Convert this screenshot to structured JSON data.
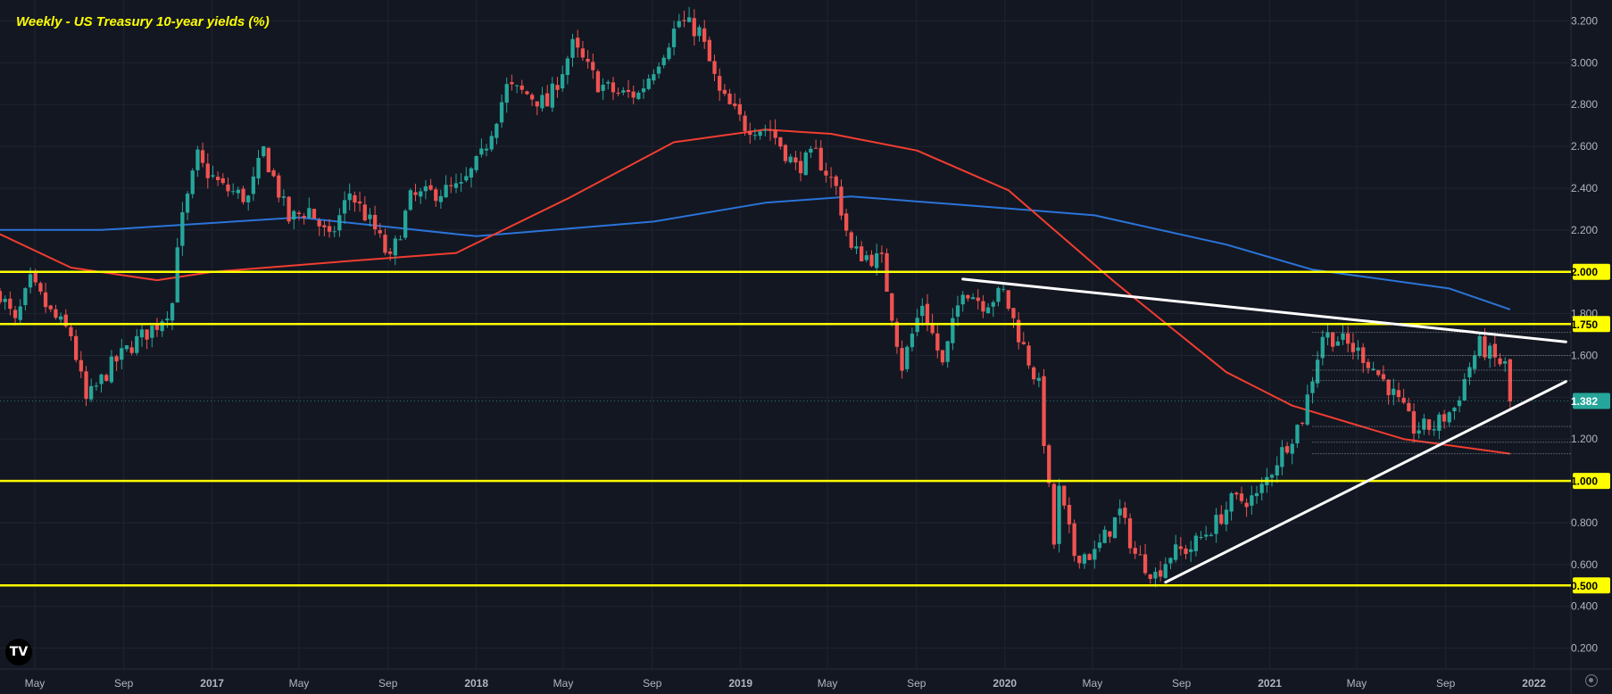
{
  "title": "Weekly - US Treasury 10-year yields (%)",
  "logo_text": "TV",
  "icons": [
    "tradingview-logo-icon",
    "settings-gear-icon"
  ],
  "colors": {
    "background": "#131722",
    "grid": "#1f2430",
    "bull": "#26a69a",
    "bear": "#ef5350",
    "sma_red": "#f23d30",
    "sma_blue": "#2a74d8",
    "levels": "#ffff00",
    "trendlines": "#ffffff",
    "axis_text": "#b2b5be",
    "current_price_badge": "#26a69a"
  },
  "chart_data": {
    "type": "candlestick",
    "title": "Weekly - US Treasury 10-year yields (%)",
    "timeframe": "Weekly",
    "x_range": [
      "2016-03-14",
      "2022-02-21"
    ],
    "ylim": [
      0.1,
      3.3
    ],
    "y_ticks": [
      3.2,
      3.0,
      2.8,
      2.6,
      2.4,
      2.2,
      2.0,
      1.8,
      1.6,
      1.4,
      1.2,
      1.0,
      0.8,
      0.6,
      0.4,
      0.2
    ],
    "x_ticks": [
      {
        "label": "May",
        "date": "2016-05-01"
      },
      {
        "label": "Sep",
        "date": "2016-09-01"
      },
      {
        "label": "2017",
        "date": "2017-01-01"
      },
      {
        "label": "May",
        "date": "2017-05-01"
      },
      {
        "label": "Sep",
        "date": "2017-09-01"
      },
      {
        "label": "2018",
        "date": "2018-01-01"
      },
      {
        "label": "May",
        "date": "2018-05-01"
      },
      {
        "label": "Sep",
        "date": "2018-09-01"
      },
      {
        "label": "2019",
        "date": "2019-01-01"
      },
      {
        "label": "May",
        "date": "2019-05-01"
      },
      {
        "label": "Sep",
        "date": "2019-09-01"
      },
      {
        "label": "2020",
        "date": "2020-01-01"
      },
      {
        "label": "May",
        "date": "2020-05-01"
      },
      {
        "label": "Sep",
        "date": "2020-09-01"
      },
      {
        "label": "2021",
        "date": "2021-01-01"
      },
      {
        "label": "May",
        "date": "2021-05-01"
      },
      {
        "label": "Sep",
        "date": "2021-09-01"
      },
      {
        "label": "2022",
        "date": "2022-01-01"
      }
    ],
    "price_path": [
      [
        "2016-03-14",
        1.9
      ],
      [
        "2016-04-04",
        1.75
      ],
      [
        "2016-04-25",
        1.95
      ],
      [
        "2016-05-23",
        1.8
      ],
      [
        "2016-06-20",
        1.7
      ],
      [
        "2016-07-11",
        1.38
      ],
      [
        "2016-08-15",
        1.55
      ],
      [
        "2016-09-12",
        1.65
      ],
      [
        "2016-10-17",
        1.75
      ],
      [
        "2016-11-07",
        1.85
      ],
      [
        "2016-11-14",
        2.15
      ],
      [
        "2016-12-12",
        2.55
      ],
      [
        "2016-12-19",
        2.5
      ],
      [
        "2017-01-16",
        2.4
      ],
      [
        "2017-02-20",
        2.35
      ],
      [
        "2017-03-13",
        2.58
      ],
      [
        "2017-04-17",
        2.25
      ],
      [
        "2017-05-15",
        2.3
      ],
      [
        "2017-06-12",
        2.15
      ],
      [
        "2017-07-10",
        2.38
      ],
      [
        "2017-08-14",
        2.2
      ],
      [
        "2017-09-04",
        2.05
      ],
      [
        "2017-10-02",
        2.35
      ],
      [
        "2017-11-06",
        2.38
      ],
      [
        "2017-12-11",
        2.4
      ],
      [
        "2018-01-08",
        2.55
      ],
      [
        "2018-02-12",
        2.88
      ],
      [
        "2018-03-12",
        2.85
      ],
      [
        "2018-04-09",
        2.8
      ],
      [
        "2018-05-14",
        3.08
      ],
      [
        "2018-06-18",
        2.9
      ],
      [
        "2018-07-16",
        2.85
      ],
      [
        "2018-08-13",
        2.85
      ],
      [
        "2018-09-17",
        3.06
      ],
      [
        "2018-10-08",
        3.2
      ],
      [
        "2018-11-05",
        3.15
      ],
      [
        "2018-12-03",
        2.85
      ],
      [
        "2019-01-07",
        2.7
      ],
      [
        "2019-02-11",
        2.68
      ],
      [
        "2019-03-18",
        2.5
      ],
      [
        "2019-04-15",
        2.56
      ],
      [
        "2019-05-13",
        2.4
      ],
      [
        "2019-06-03",
        2.1
      ],
      [
        "2019-07-15",
        2.05
      ],
      [
        "2019-08-12",
        1.55
      ],
      [
        "2019-09-09",
        1.85
      ],
      [
        "2019-10-07",
        1.55
      ],
      [
        "2019-11-04",
        1.93
      ],
      [
        "2019-12-02",
        1.85
      ],
      [
        "2019-12-30",
        1.9
      ],
      [
        "2020-01-20",
        1.7
      ],
      [
        "2020-02-17",
        1.45
      ],
      [
        "2020-03-09",
        0.7
      ],
      [
        "2020-03-16",
        0.95
      ],
      [
        "2020-04-06",
        0.65
      ],
      [
        "2020-05-04",
        0.65
      ],
      [
        "2020-06-08",
        0.85
      ],
      [
        "2020-06-29",
        0.65
      ],
      [
        "2020-07-27",
        0.55
      ],
      [
        "2020-08-17",
        0.65
      ],
      [
        "2020-09-14",
        0.68
      ],
      [
        "2020-10-19",
        0.8
      ],
      [
        "2020-11-09",
        0.9
      ],
      [
        "2020-12-14",
        0.92
      ],
      [
        "2021-01-11",
        1.1
      ],
      [
        "2021-02-15",
        1.3
      ],
      [
        "2021-03-15",
        1.7
      ],
      [
        "2021-04-05",
        1.68
      ],
      [
        "2021-05-10",
        1.6
      ],
      [
        "2021-06-14",
        1.45
      ],
      [
        "2021-07-19",
        1.25
      ],
      [
        "2021-08-16",
        1.26
      ],
      [
        "2021-09-13",
        1.35
      ],
      [
        "2021-10-04",
        1.55
      ],
      [
        "2021-10-18",
        1.65
      ],
      [
        "2021-11-08",
        1.58
      ],
      [
        "2021-11-22",
        1.55
      ],
      [
        "2021-11-29",
        1.38
      ]
    ],
    "sma_red": [
      [
        "2016-03-14",
        2.18
      ],
      [
        "2016-06-20",
        2.02
      ],
      [
        "2016-10-17",
        1.96
      ],
      [
        "2017-01-02",
        2.0
      ],
      [
        "2017-07-03",
        2.05
      ],
      [
        "2017-12-04",
        2.09
      ],
      [
        "2018-05-07",
        2.35
      ],
      [
        "2018-10-01",
        2.62
      ],
      [
        "2019-02-04",
        2.68
      ],
      [
        "2019-05-06",
        2.66
      ],
      [
        "2019-09-02",
        2.58
      ],
      [
        "2020-01-06",
        2.39
      ],
      [
        "2020-06-01",
        1.95
      ],
      [
        "2020-11-02",
        1.52
      ],
      [
        "2021-02-01",
        1.36
      ],
      [
        "2021-07-05",
        1.2
      ],
      [
        "2021-11-29",
        1.13
      ]
    ],
    "sma_blue": [
      [
        "2016-03-14",
        2.2
      ],
      [
        "2016-08-01",
        2.2
      ],
      [
        "2017-05-01",
        2.26
      ],
      [
        "2018-01-01",
        2.17
      ],
      [
        "2018-09-03",
        2.24
      ],
      [
        "2019-02-04",
        2.33
      ],
      [
        "2019-06-03",
        2.36
      ],
      [
        "2019-11-04",
        2.32
      ],
      [
        "2020-05-04",
        2.27
      ],
      [
        "2020-11-02",
        2.13
      ],
      [
        "2021-03-01",
        2.01
      ],
      [
        "2021-09-06",
        1.92
      ],
      [
        "2021-11-29",
        1.82
      ]
    ],
    "horizontal_levels": [
      {
        "label": "2.000",
        "value": 2.0
      },
      {
        "label": "1.750",
        "value": 1.75
      },
      {
        "label": "1.000",
        "value": 1.0
      },
      {
        "label": "0.500",
        "value": 0.5
      }
    ],
    "current_price": {
      "label": "1.382",
      "value": 1.382
    },
    "trendlines": [
      {
        "name": "descending-resistance",
        "start": [
          "2019-11-04",
          1.965
        ],
        "end": [
          "2022-02-14",
          1.665
        ]
      },
      {
        "name": "ascending-support",
        "start": [
          "2020-08-10",
          0.515
        ],
        "end": [
          "2022-02-14",
          1.475
        ]
      }
    ],
    "dotted_levels": [
      1.71,
      1.6,
      1.53,
      1.48,
      1.26,
      1.185,
      1.13
    ],
    "grid": true,
    "legend": "none"
  }
}
